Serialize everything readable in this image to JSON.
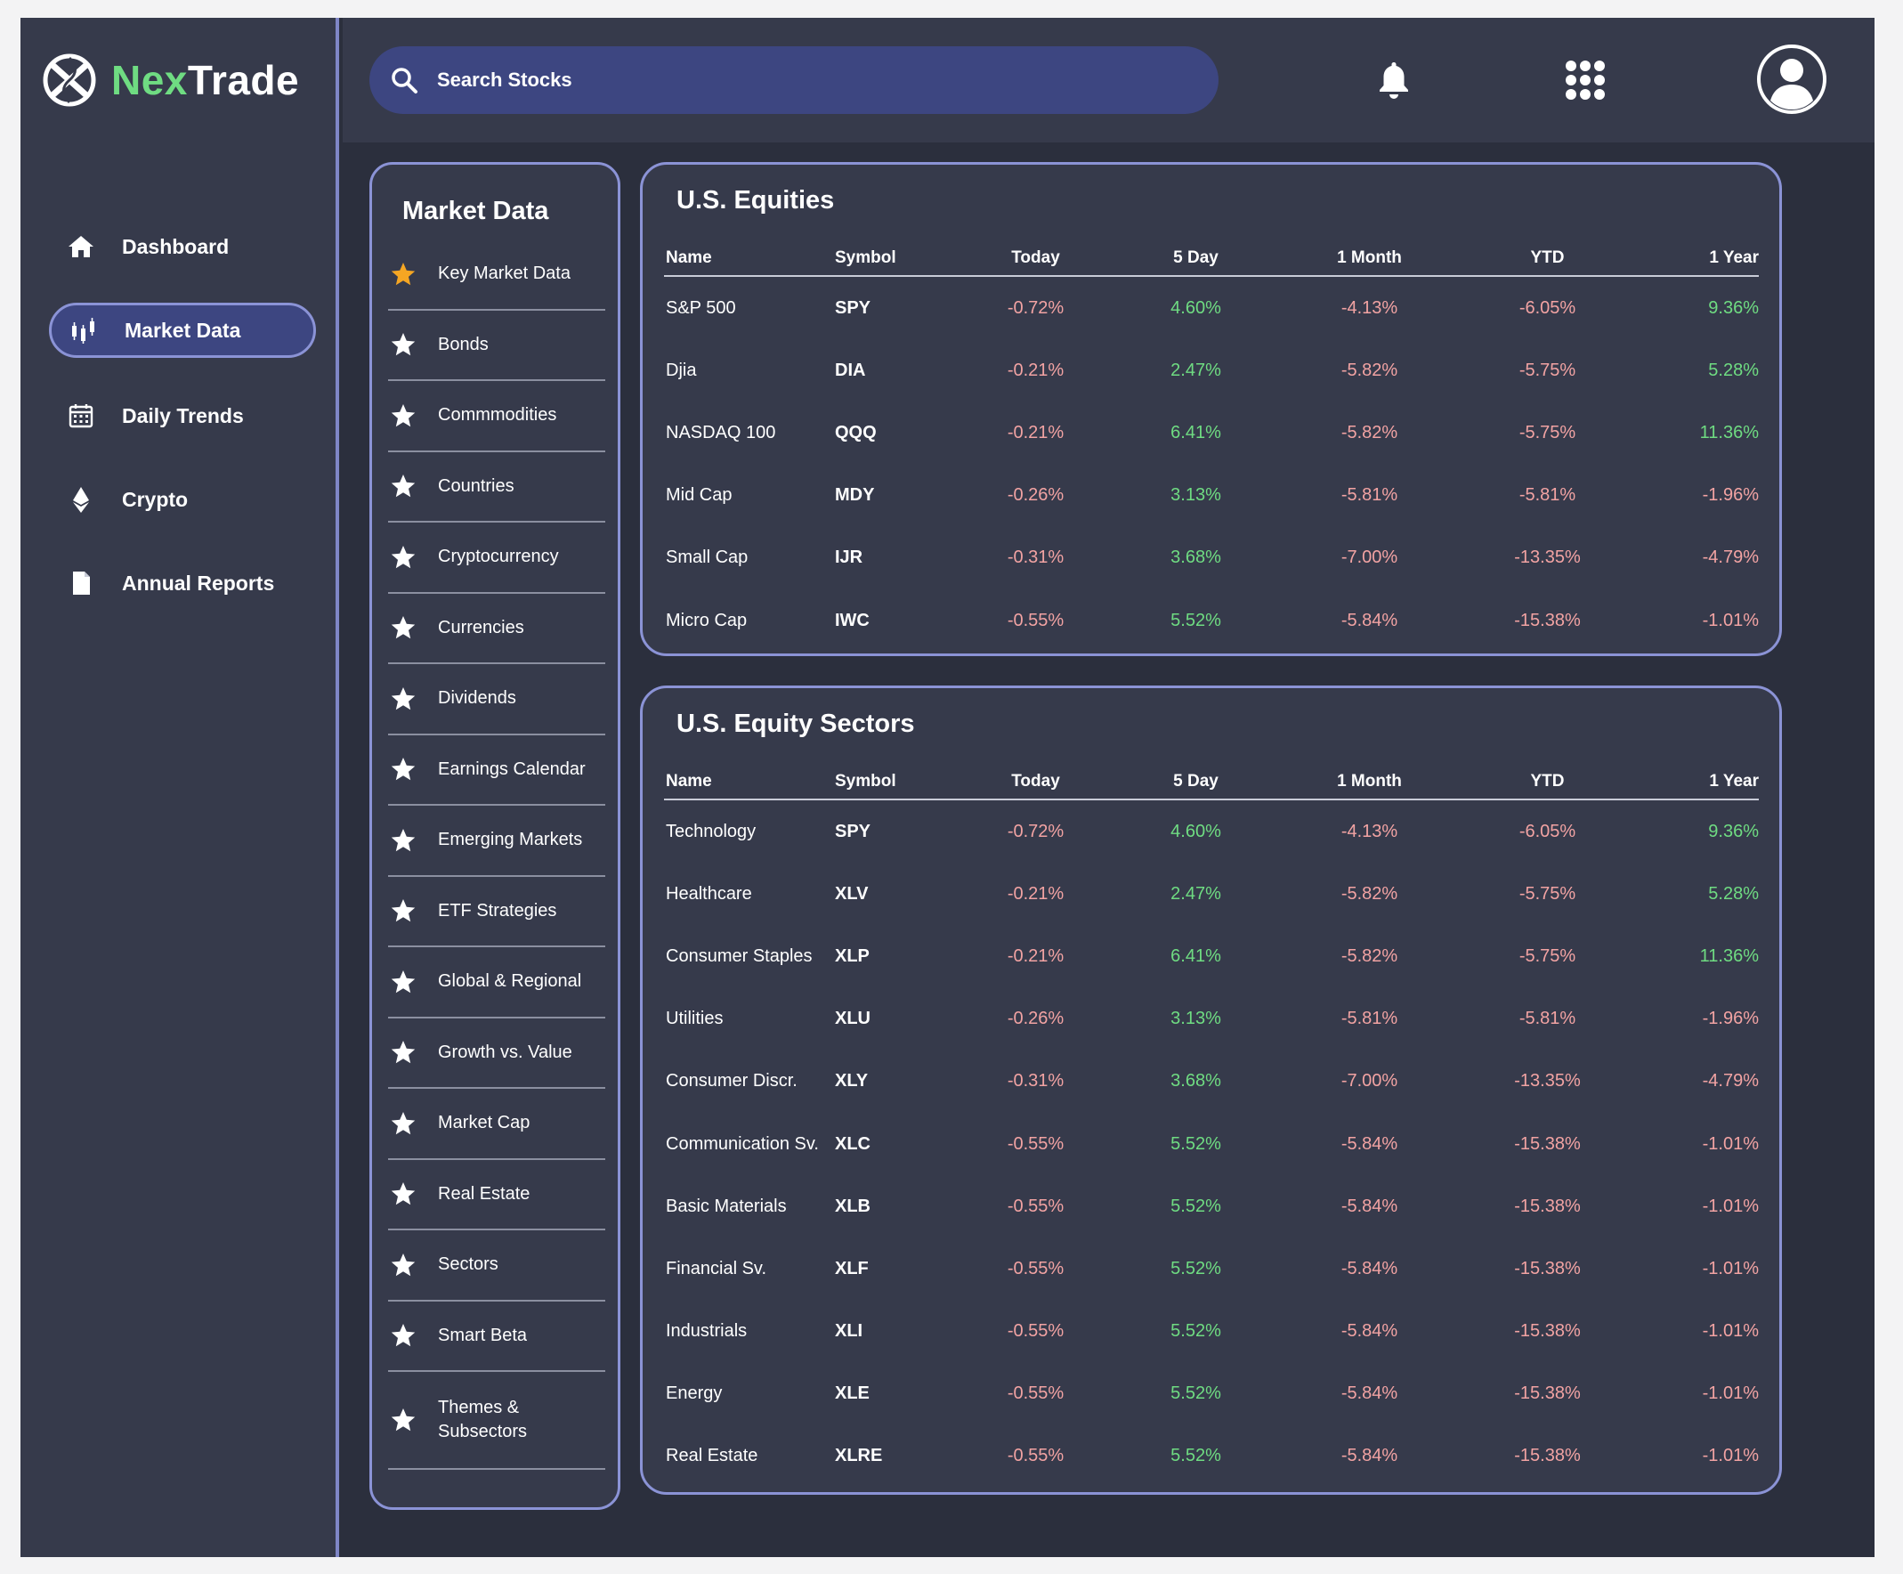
{
  "brand": {
    "part1": "Nex",
    "part2": "Trade"
  },
  "nav": [
    {
      "label": "Dashboard",
      "icon": "home-icon",
      "active": false
    },
    {
      "label": "Market Data",
      "icon": "candlestick-icon",
      "active": true
    },
    {
      "label": "Daily Trends",
      "icon": "calendar-icon",
      "active": false
    },
    {
      "label": "Crypto",
      "icon": "ethereum-icon",
      "active": false
    },
    {
      "label": "Annual Reports",
      "icon": "document-icon",
      "active": false
    }
  ],
  "search": {
    "placeholder": "Search Stocks"
  },
  "menu": {
    "title": "Market Data",
    "items": [
      {
        "label": "Key Market Data",
        "starred": true
      },
      {
        "label": "Bonds",
        "starred": false
      },
      {
        "label": "Commmodities",
        "starred": false
      },
      {
        "label": "Countries",
        "starred": false
      },
      {
        "label": "Cryptocurrency",
        "starred": false
      },
      {
        "label": "Currencies",
        "starred": false
      },
      {
        "label": "Dividends",
        "starred": false
      },
      {
        "label": "Earnings Calendar",
        "starred": false
      },
      {
        "label": "Emerging Markets",
        "starred": false
      },
      {
        "label": "ETF Strategies",
        "starred": false
      },
      {
        "label": "Global & Regional",
        "starred": false
      },
      {
        "label": "Growth vs. Value",
        "starred": false
      },
      {
        "label": "Market Cap",
        "starred": false
      },
      {
        "label": "Real Estate",
        "starred": false
      },
      {
        "label": "Sectors",
        "starred": false
      },
      {
        "label": "Smart Beta",
        "starred": false
      },
      {
        "label": "Themes & Subsectors",
        "starred": false
      }
    ]
  },
  "columns": [
    "Name",
    "Symbol",
    "Today",
    "5 Day",
    "1 Month",
    "YTD",
    "1 Year"
  ],
  "equities": {
    "title": "U.S. Equities",
    "rows": [
      [
        "S&P 500",
        "SPY",
        "-0.72%",
        "4.60%",
        "-4.13%",
        "-6.05%",
        "9.36%"
      ],
      [
        "Djia",
        "DIA",
        "-0.21%",
        "2.47%",
        "-5.82%",
        "-5.75%",
        "5.28%"
      ],
      [
        "NASDAQ 100",
        "QQQ",
        "-0.21%",
        "6.41%",
        "-5.82%",
        "-5.75%",
        "11.36%"
      ],
      [
        "Mid Cap",
        "MDY",
        "-0.26%",
        "3.13%",
        "-5.81%",
        "-5.81%",
        "-1.96%"
      ],
      [
        "Small Cap",
        "IJR",
        "-0.31%",
        "3.68%",
        "-7.00%",
        "-13.35%",
        "-4.79%"
      ],
      [
        "Micro Cap",
        "IWC",
        "-0.55%",
        "5.52%",
        "-5.84%",
        "-15.38%",
        "-1.01%"
      ]
    ]
  },
  "sectors": {
    "title": "U.S. Equity Sectors",
    "rows": [
      [
        "Technology",
        "SPY",
        "-0.72%",
        "4.60%",
        "-4.13%",
        "-6.05%",
        "9.36%"
      ],
      [
        "Healthcare",
        "XLV",
        "-0.21%",
        "2.47%",
        "-5.82%",
        "-5.75%",
        "5.28%"
      ],
      [
        "Consumer Staples",
        "XLP",
        "-0.21%",
        "6.41%",
        "-5.82%",
        "-5.75%",
        "11.36%"
      ],
      [
        "Utilities",
        "XLU",
        "-0.26%",
        "3.13%",
        "-5.81%",
        "-5.81%",
        "-1.96%"
      ],
      [
        "Consumer Discr.",
        "XLY",
        "-0.31%",
        "3.68%",
        "-7.00%",
        "-13.35%",
        "-4.79%"
      ],
      [
        "Communication Sv.",
        "XLC",
        "-0.55%",
        "5.52%",
        "-5.84%",
        "-15.38%",
        "-1.01%"
      ],
      [
        "Basic Materials",
        "XLB",
        "-0.55%",
        "5.52%",
        "-5.84%",
        "-15.38%",
        "-1.01%"
      ],
      [
        "Financial Sv.",
        "XLF",
        "-0.55%",
        "5.52%",
        "-5.84%",
        "-15.38%",
        "-1.01%"
      ],
      [
        "Industrials",
        "XLI",
        "-0.55%",
        "5.52%",
        "-5.84%",
        "-15.38%",
        "-1.01%"
      ],
      [
        "Energy",
        "XLE",
        "-0.55%",
        "5.52%",
        "-5.84%",
        "-15.38%",
        "-1.01%"
      ],
      [
        "Real Estate",
        "XLRE",
        "-0.55%",
        "5.52%",
        "-5.84%",
        "-15.38%",
        "-1.01%"
      ]
    ]
  },
  "colors": {
    "accent": "#6fdc82",
    "negative": "#f2a3a3",
    "nav_active": "#3d4681",
    "border": "#8b93d6",
    "star_active": "#f5a623"
  }
}
